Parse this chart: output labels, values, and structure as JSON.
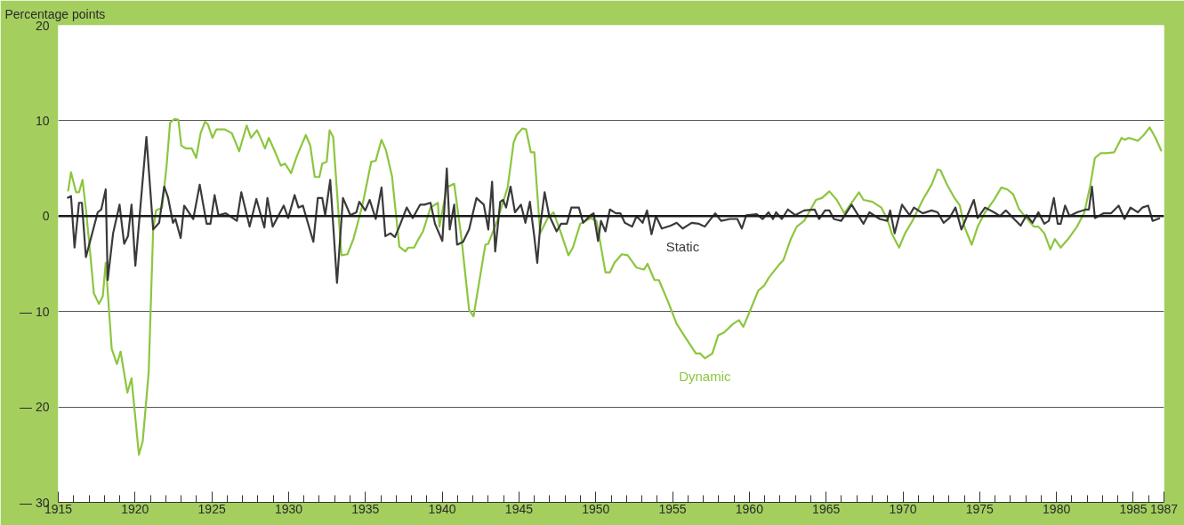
{
  "chart_data": {
    "type": "line",
    "ylabel": "Percentage points",
    "xlim": [
      1915,
      1987
    ],
    "ylim": [
      -30,
      20
    ],
    "xticks": [
      1915,
      {
        "value": 1916,
        "label": null
      },
      {
        "value": 1917,
        "label": null
      },
      {
        "value": 1918,
        "label": null
      },
      {
        "value": 1919,
        "label": null
      },
      1920,
      {
        "value": 1921,
        "label": null
      },
      {
        "value": 1922,
        "label": null
      },
      {
        "value": 1923,
        "label": null
      },
      {
        "value": 1924,
        "label": null
      },
      1925,
      {
        "value": 1926,
        "label": null
      },
      {
        "value": 1927,
        "label": null
      },
      {
        "value": 1928,
        "label": null
      },
      {
        "value": 1929,
        "label": null
      },
      1930,
      {
        "value": 1931,
        "label": null
      },
      {
        "value": 1932,
        "label": null
      },
      {
        "value": 1933,
        "label": null
      },
      {
        "value": 1934,
        "label": null
      },
      1935,
      {
        "value": 1936,
        "label": null
      },
      {
        "value": 1937,
        "label": null
      },
      {
        "value": 1938,
        "label": null
      },
      {
        "value": 1939,
        "label": null
      },
      1940,
      {
        "value": 1941,
        "label": null
      },
      {
        "value": 1942,
        "label": null
      },
      {
        "value": 1943,
        "label": null
      },
      {
        "value": 1944,
        "label": null
      },
      1945,
      {
        "value": 1946,
        "label": null
      },
      {
        "value": 1947,
        "label": null
      },
      {
        "value": 1948,
        "label": null
      },
      {
        "value": 1949,
        "label": null
      },
      1950,
      {
        "value": 1951,
        "label": null
      },
      {
        "value": 1952,
        "label": null
      },
      {
        "value": 1953,
        "label": null
      },
      {
        "value": 1954,
        "label": null
      },
      1955,
      {
        "value": 1956,
        "label": null
      },
      {
        "value": 1957,
        "label": null
      },
      {
        "value": 1958,
        "label": null
      },
      {
        "value": 1959,
        "label": null
      },
      1960,
      {
        "value": 1961,
        "label": null
      },
      {
        "value": 1962,
        "label": null
      },
      {
        "value": 1963,
        "label": null
      },
      {
        "value": 1964,
        "label": null
      },
      1965,
      {
        "value": 1966,
        "label": null
      },
      {
        "value": 1967,
        "label": null
      },
      {
        "value": 1968,
        "label": null
      },
      {
        "value": 1969,
        "label": null
      },
      1970,
      {
        "value": 1971,
        "label": null
      },
      {
        "value": 1972,
        "label": null
      },
      {
        "value": 1973,
        "label": null
      },
      {
        "value": 1974,
        "label": null
      },
      1975,
      {
        "value": 1976,
        "label": null
      },
      {
        "value": 1977,
        "label": null
      },
      {
        "value": 1978,
        "label": null
      },
      {
        "value": 1979,
        "label": null
      },
      1980,
      {
        "value": 1981,
        "label": null
      },
      {
        "value": 1982,
        "label": null
      },
      {
        "value": 1983,
        "label": null
      },
      {
        "value": 1984,
        "label": null
      },
      1985,
      {
        "value": 1986,
        "label": null
      },
      1987
    ],
    "yticks": [
      {
        "value": -30,
        "label": "— 30"
      },
      {
        "value": -20,
        "label": "— 20"
      },
      {
        "value": -10,
        "label": "— 10"
      },
      0,
      10,
      20
    ],
    "grid": "y",
    "line_style": "solid",
    "ref_lines": [
      {
        "axis": "y",
        "value": 0,
        "color": "#1a1a1a"
      }
    ],
    "series": [
      {
        "name": "Dynamic",
        "color": "#8cc63e",
        "x": [
          1915.64,
          1915.83,
          1916.16,
          1916.35,
          1916.58,
          1916.84,
          1917.12,
          1917.32,
          1917.65,
          1917.9,
          1918.09,
          1918.48,
          1918.82,
          1919.06,
          1919.5,
          1919.77,
          1920.25,
          1920.5,
          1920.89,
          1921.18,
          1921.37,
          1921.76,
          1922.05,
          1922.28,
          1922.59,
          1922.82,
          1923.01,
          1923.3,
          1923.69,
          1923.98,
          1924.27,
          1924.56,
          1924.75,
          1925.04,
          1925.3,
          1925.82,
          1926.3,
          1926.78,
          1927.27,
          1927.55,
          1927.94,
          1928.23,
          1928.46,
          1928.71,
          1929.1,
          1929.49,
          1929.77,
          1930.16,
          1930.54,
          1931.12,
          1931.41,
          1931.7,
          1932.0,
          1932.19,
          1932.48,
          1932.67,
          1932.9,
          1933.44,
          1933.83,
          1934.22,
          1934.8,
          1935.38,
          1935.67,
          1936.05,
          1936.34,
          1936.73,
          1937.21,
          1937.6,
          1937.79,
          1938.17,
          1938.46,
          1938.75,
          1939.24,
          1939.72,
          1939.82,
          1940.3,
          1940.78,
          1941.26,
          1941.75,
          1942.04,
          1942.81,
          1943.0,
          1943.58,
          1944.26,
          1944.65,
          1944.84,
          1945.23,
          1945.46,
          1945.77,
          1946.0,
          1946.38,
          1946.87,
          1947.25,
          1947.74,
          1948.22,
          1948.51,
          1948.99,
          1949.67,
          1950.05,
          1950.63,
          1950.92,
          1951.21,
          1951.69,
          1952.08,
          1952.66,
          1953.14,
          1953.37,
          1953.82,
          1954.11,
          1954.69,
          1955.27,
          1955.75,
          1956.52,
          1956.81,
          1957.1,
          1957.59,
          1957.97,
          1958.36,
          1958.94,
          1959.32,
          1959.61,
          1960.0,
          1960.58,
          1960.96,
          1961.25,
          1961.54,
          1961.93,
          1962.22,
          1962.7,
          1963.09,
          1963.57,
          1964.34,
          1964.73,
          1965.21,
          1965.69,
          1966.18,
          1966.66,
          1967.14,
          1967.43,
          1968.01,
          1968.59,
          1968.98,
          1969.27,
          1969.75,
          1970.14,
          1970.62,
          1971.29,
          1971.87,
          1972.26,
          1972.45,
          1972.84,
          1973.32,
          1973.71,
          1974.0,
          1974.48,
          1974.87,
          1975.35,
          1975.93,
          1976.41,
          1976.8,
          1977.18,
          1977.57,
          1978.05,
          1978.53,
          1978.82,
          1979.21,
          1979.6,
          1979.89,
          1980.27,
          1980.76,
          1981.34,
          1981.82,
          1982.21,
          1982.5,
          1982.89,
          1983.27,
          1983.76,
          1984.24,
          1984.43,
          1984.72,
          1985.3,
          1985.68,
          1986.07,
          1986.45,
          1986.84
        ],
        "values": [
          2.6,
          4.6,
          2.5,
          2.5,
          3.8,
          0.1,
          -4.6,
          -8.1,
          -9.2,
          -8.4,
          -4.9,
          -13.9,
          -15.5,
          -14.2,
          -18.5,
          -17.0,
          -25.0,
          -23.6,
          -16.3,
          -1.4,
          0.6,
          0.9,
          5.2,
          9.8,
          10.2,
          10.1,
          7.4,
          7.1,
          7.1,
          6.1,
          8.7,
          9.9,
          9.6,
          8.2,
          9.1,
          9.1,
          8.7,
          6.8,
          9.5,
          8.2,
          9.0,
          8.0,
          7.1,
          8.2,
          6.8,
          5.3,
          5.5,
          4.5,
          6.3,
          8.5,
          7.4,
          4.1,
          4.1,
          5.5,
          5.7,
          9.0,
          8.3,
          -4.1,
          -4.0,
          -2.4,
          1.1,
          5.7,
          5.8,
          8.0,
          6.9,
          4.2,
          -3.2,
          -3.7,
          -3.3,
          -3.3,
          -2.4,
          -1.6,
          0.9,
          1.4,
          -1.1,
          3.0,
          3.4,
          -2.4,
          -9.8,
          -10.5,
          -3.0,
          -2.9,
          -0.5,
          3.0,
          7.7,
          8.5,
          9.2,
          9.1,
          6.7,
          6.7,
          -1.8,
          -0.2,
          0.4,
          -1.8,
          -4.1,
          -3.3,
          -0.8,
          -0.2,
          -0.5,
          -5.9,
          -5.9,
          -4.9,
          -4.0,
          -4.1,
          -5.4,
          -5.6,
          -5.0,
          -6.7,
          -6.7,
          -8.9,
          -11.3,
          -12.5,
          -14.4,
          -14.4,
          -14.9,
          -14.4,
          -12.5,
          -12.2,
          -11.3,
          -10.9,
          -11.6,
          -10.1,
          -7.8,
          -7.3,
          -6.5,
          -5.9,
          -5.1,
          -4.6,
          -2.4,
          -1.1,
          -0.5,
          1.7,
          1.9,
          2.6,
          1.7,
          0.3,
          1.4,
          2.5,
          1.7,
          1.5,
          0.9,
          -0.3,
          -1.8,
          -3.3,
          -1.8,
          -0.5,
          1.7,
          3.3,
          4.9,
          4.8,
          3.4,
          2.0,
          1.1,
          -1.1,
          -3.0,
          -1.1,
          0.4,
          1.7,
          3.0,
          2.8,
          2.3,
          0.7,
          -0.2,
          -1.1,
          -1.1,
          -1.8,
          -3.5,
          -2.4,
          -3.3,
          -2.4,
          -1.1,
          0.4,
          3.3,
          6.1,
          6.6,
          6.6,
          6.7,
          8.2,
          8.0,
          8.2,
          7.9,
          8.5,
          9.3,
          8.2,
          6.8
        ]
      },
      {
        "name": "Static",
        "color": "#3a3a3a",
        "x": [
          1915.58,
          1915.83,
          1916.06,
          1916.35,
          1916.54,
          1916.8,
          1917.57,
          1917.8,
          1918.09,
          1918.22,
          1918.57,
          1918.99,
          1919.29,
          1919.54,
          1919.77,
          1920.02,
          1920.74,
          1921.18,
          1921.57,
          1921.9,
          1922.14,
          1922.47,
          1922.63,
          1922.97,
          1923.2,
          1923.79,
          1924.21,
          1924.66,
          1924.91,
          1925.18,
          1925.43,
          1925.91,
          1926.63,
          1926.92,
          1927.46,
          1927.9,
          1928.42,
          1928.62,
          1928.96,
          1929.68,
          1929.97,
          1930.39,
          1930.64,
          1930.93,
          1931.61,
          1931.9,
          1932.19,
          1932.38,
          1932.71,
          1933.15,
          1933.54,
          1934.02,
          1934.41,
          1934.6,
          1934.99,
          1935.28,
          1935.67,
          1936.05,
          1936.3,
          1936.63,
          1936.92,
          1937.21,
          1937.69,
          1938.08,
          1938.56,
          1938.85,
          1939.24,
          1939.53,
          1940.01,
          1940.3,
          1940.49,
          1940.78,
          1940.97,
          1941.36,
          1941.75,
          1942.23,
          1942.71,
          1943.0,
          1943.25,
          1943.45,
          1943.78,
          1943.97,
          1944.16,
          1944.45,
          1944.74,
          1945.13,
          1945.42,
          1945.71,
          1946.0,
          1946.19,
          1946.38,
          1946.67,
          1946.96,
          1947.45,
          1947.74,
          1948.12,
          1948.41,
          1948.9,
          1949.18,
          1949.67,
          1949.86,
          1950.15,
          1950.34,
          1950.63,
          1950.92,
          1951.31,
          1951.6,
          1951.89,
          1952.37,
          1952.66,
          1953.05,
          1953.34,
          1953.63,
          1953.92,
          1954.3,
          1954.88,
          1955.27,
          1955.66,
          1956.24,
          1956.72,
          1957.1,
          1957.39,
          1957.78,
          1958.16,
          1958.74,
          1959.22,
          1959.51,
          1959.8,
          1960.48,
          1960.87,
          1961.25,
          1961.54,
          1961.74,
          1962.12,
          1962.51,
          1962.99,
          1963.57,
          1964.25,
          1964.54,
          1964.93,
          1965.21,
          1965.5,
          1965.98,
          1966.66,
          1967.43,
          1967.82,
          1968.49,
          1968.98,
          1969.17,
          1969.46,
          1969.94,
          1970.43,
          1970.72,
          1971.29,
          1971.87,
          1972.26,
          1972.65,
          1973.03,
          1973.42,
          1973.81,
          1974.1,
          1974.62,
          1974.87,
          1975.35,
          1975.93,
          1976.32,
          1976.7,
          1977.18,
          1977.67,
          1978.05,
          1978.44,
          1978.82,
          1979.21,
          1979.5,
          1979.83,
          1980.08,
          1980.27,
          1980.56,
          1980.85,
          1981.34,
          1981.92,
          1982.11,
          1982.31,
          1982.5,
          1983.08,
          1983.56,
          1984.05,
          1984.43,
          1984.82,
          1985.3,
          1985.59,
          1985.97,
          1986.26,
          1986.74
        ],
        "values": [
          1.9,
          2.1,
          -3.3,
          1.4,
          1.4,
          -4.3,
          0.4,
          0.7,
          2.8,
          -6.7,
          -1.8,
          1.2,
          -2.9,
          -2.1,
          1.2,
          -5.2,
          8.3,
          -1.4,
          -0.7,
          3.1,
          2.0,
          -0.7,
          -0.3,
          -2.3,
          1.1,
          -0.3,
          3.3,
          -0.8,
          -0.8,
          2.2,
          0.1,
          0.3,
          -0.5,
          2.5,
          -1.1,
          1.8,
          -1.2,
          1.9,
          -1.1,
          1.1,
          -0.2,
          2.2,
          0.9,
          1.1,
          -2.7,
          1.9,
          1.9,
          0.1,
          3.8,
          -7.0,
          1.9,
          0.1,
          0.4,
          1.5,
          0.6,
          1.7,
          -0.3,
          3.0,
          -2.1,
          -1.8,
          -2.2,
          -1.1,
          0.9,
          -0.2,
          1.2,
          1.2,
          1.4,
          -0.8,
          -2.6,
          5.0,
          -1.4,
          1.2,
          -3.0,
          -2.7,
          -1.4,
          1.9,
          1.2,
          -1.4,
          3.6,
          -3.7,
          1.5,
          1.7,
          0.9,
          3.1,
          0.4,
          1.2,
          -0.7,
          1.5,
          -2.2,
          -4.9,
          -1.1,
          2.5,
          0.1,
          -1.6,
          -0.8,
          -0.8,
          0.9,
          0.9,
          -0.7,
          0.1,
          0.3,
          -2.6,
          -0.5,
          -1.6,
          0.7,
          0.3,
          0.3,
          -0.7,
          -1.1,
          0.0,
          -0.7,
          0.6,
          -1.9,
          0.0,
          -1.3,
          -1.0,
          -0.7,
          -1.3,
          -0.7,
          -0.8,
          -1.1,
          -0.5,
          0.3,
          -0.5,
          -0.3,
          -0.3,
          -1.3,
          0.1,
          0.2,
          -0.3,
          0.4,
          -0.3,
          0.4,
          -0.3,
          0.7,
          0.1,
          0.6,
          0.7,
          -0.3,
          0.6,
          0.6,
          -0.3,
          -0.5,
          1.2,
          -0.8,
          0.4,
          -0.3,
          -0.5,
          0.6,
          -1.8,
          1.2,
          0.1,
          0.9,
          0.3,
          0.6,
          0.4,
          -0.7,
          -0.2,
          0.9,
          -1.4,
          -0.3,
          1.7,
          -0.2,
          0.9,
          0.4,
          0.0,
          0.6,
          -0.2,
          -1.0,
          0.1,
          -0.7,
          0.4,
          -0.8,
          -0.5,
          1.9,
          -0.8,
          -0.8,
          1.1,
          0.0,
          0.4,
          0.7,
          0.7,
          3.1,
          -0.2,
          0.3,
          0.3,
          1.1,
          -0.3,
          0.9,
          0.4,
          0.9,
          1.1,
          -0.5,
          -0.2
        ]
      }
    ]
  }
}
